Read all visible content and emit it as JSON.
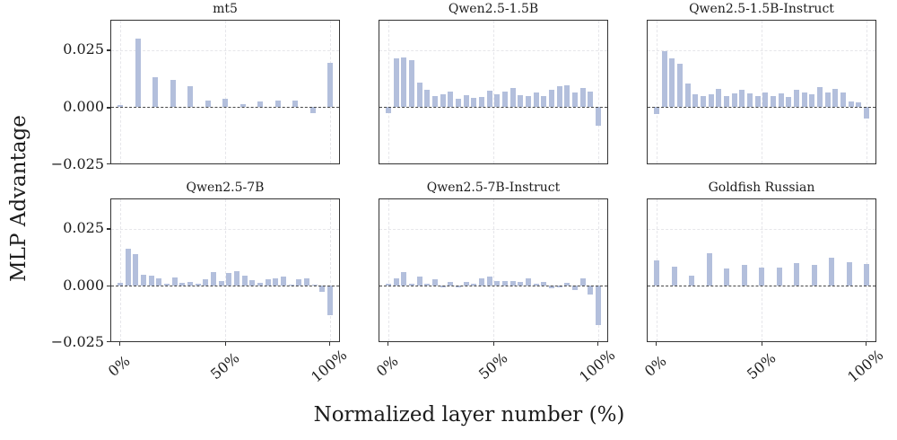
{
  "figure": {
    "ylabel": "MLP Advantage",
    "xlabel": "Normalized layer number (%)",
    "y_tick_labels": [
      "0.025",
      "0.000",
      "−0.025"
    ],
    "x_tick_labels": [
      "0%",
      "50%",
      "100%"
    ],
    "bar_color": "#b3bfdc",
    "zero_line_color": "#474747",
    "grid_color": "#e6e6ea",
    "axes_border_color": "#333333",
    "background_color": "#ffffff"
  },
  "chart_data": [
    {
      "type": "bar",
      "title": "mt5",
      "x_range_percent": [
        0,
        100
      ],
      "xticks_percent": [
        0,
        50,
        100
      ],
      "yticks": [
        0.025,
        0.0,
        -0.025
      ],
      "ylim": [
        -0.0248,
        0.038
      ],
      "values": [
        0.001,
        0.0302,
        0.0132,
        0.012,
        0.0093,
        0.0028,
        0.0035,
        0.0013,
        0.0026,
        0.003,
        0.003,
        -0.0026,
        0.0194
      ]
    },
    {
      "type": "bar",
      "title": "Qwen2.5-1.5B",
      "x_range_percent": [
        0,
        100
      ],
      "xticks_percent": [
        0,
        50,
        100
      ],
      "yticks": [
        0.025,
        0.0,
        -0.025
      ],
      "ylim": [
        -0.0248,
        0.038
      ],
      "values": [
        -0.0025,
        0.0213,
        0.022,
        0.0205,
        0.0108,
        0.0077,
        0.0047,
        0.0057,
        0.0069,
        0.0036,
        0.0053,
        0.004,
        0.0043,
        0.0073,
        0.0057,
        0.0068,
        0.0085,
        0.0052,
        0.0048,
        0.0065,
        0.0048,
        0.0074,
        0.0091,
        0.0096,
        0.0065,
        0.0085,
        0.0068,
        -0.0082
      ]
    },
    {
      "type": "bar",
      "title": "Qwen2.5-1.5B-Instruct",
      "x_range_percent": [
        0,
        100
      ],
      "xticks_percent": [
        0,
        50,
        100
      ],
      "yticks": [
        0.025,
        0.0,
        -0.025
      ],
      "ylim": [
        -0.0248,
        0.038
      ],
      "values": [
        -0.003,
        0.0245,
        0.0215,
        0.019,
        0.0105,
        0.0055,
        0.005,
        0.0055,
        0.008,
        0.005,
        0.006,
        0.0075,
        0.006,
        0.005,
        0.0065,
        0.005,
        0.006,
        0.0046,
        0.0076,
        0.0063,
        0.0055,
        0.0089,
        0.0063,
        0.0081,
        0.0065,
        0.0026,
        0.002,
        -0.005
      ]
    },
    {
      "type": "bar",
      "title": "Qwen2.5-7B",
      "x_range_percent": [
        0,
        100
      ],
      "xticks_percent": [
        0,
        50,
        100
      ],
      "yticks": [
        0.025,
        0.0,
        -0.025
      ],
      "ylim": [
        -0.0248,
        0.038
      ],
      "values": [
        0.001,
        0.016,
        0.0136,
        0.0046,
        0.0041,
        0.003,
        0.0007,
        0.0036,
        0.001,
        0.0016,
        0.0008,
        0.0025,
        0.0057,
        0.002,
        0.0054,
        0.0063,
        0.0044,
        0.0024,
        0.001,
        0.0026,
        0.003,
        0.0037,
        0.0004,
        0.0028,
        0.003,
        0.0002,
        -0.0029,
        -0.0134
      ]
    },
    {
      "type": "bar",
      "title": "Qwen2.5-7B-Instruct",
      "x_range_percent": [
        0,
        100
      ],
      "xticks_percent": [
        0,
        50,
        100
      ],
      "yticks": [
        0.025,
        0.0,
        -0.025
      ],
      "ylim": [
        -0.0248,
        0.038
      ],
      "values": [
        0.0008,
        0.003,
        0.0057,
        0.0008,
        0.0039,
        0.0008,
        0.0028,
        -0.001,
        0.0015,
        -0.0008,
        0.0015,
        0.0005,
        0.003,
        0.0039,
        0.0018,
        0.0018,
        0.0018,
        0.0015,
        0.003,
        0.0008,
        0.0015,
        -0.0012,
        -0.0008,
        0.0012,
        -0.002,
        0.003,
        -0.004,
        -0.0178
      ]
    },
    {
      "type": "bar",
      "title": "Goldfish Russian",
      "x_range_percent": [
        0,
        100
      ],
      "xticks_percent": [
        0,
        50,
        100
      ],
      "yticks": [
        0.025,
        0.0,
        -0.025
      ],
      "ylim": [
        -0.0248,
        0.038
      ],
      "values": [
        0.0111,
        0.0082,
        0.0044,
        0.014,
        0.0073,
        0.0088,
        0.0076,
        0.0078,
        0.0097,
        0.009,
        0.012,
        0.0101,
        0.0093
      ]
    }
  ]
}
